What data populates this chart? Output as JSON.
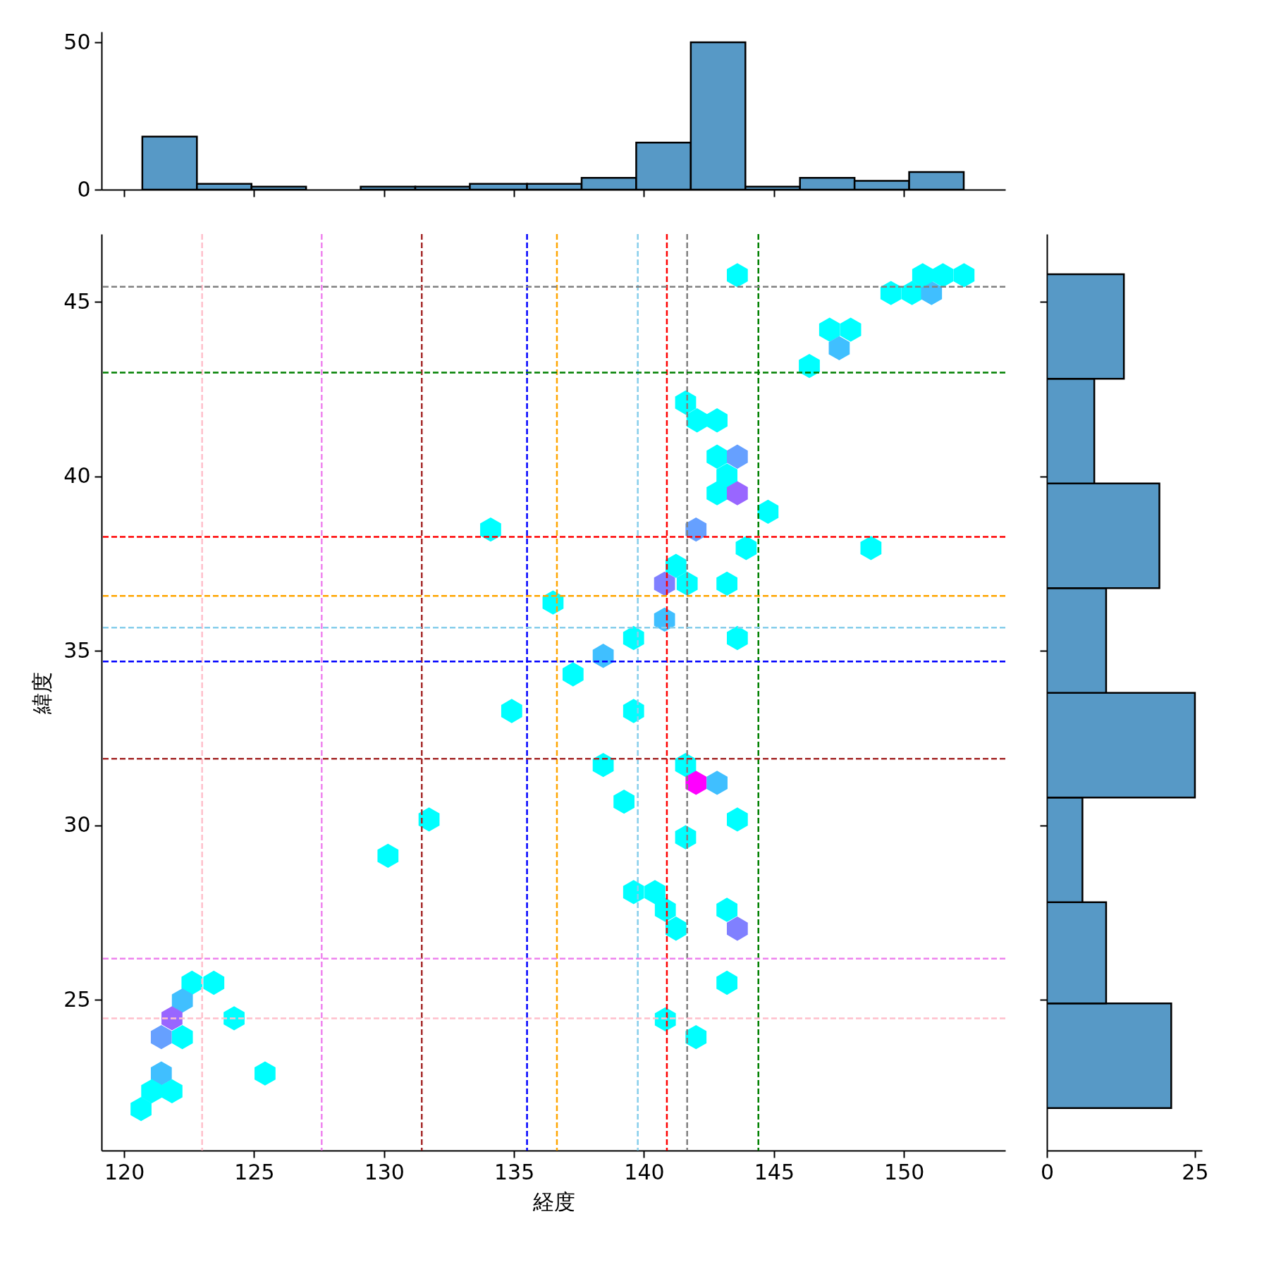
{
  "chart_data": [
    {
      "type": "histogram",
      "bins": [
        120.7,
        122.8,
        124.9,
        127.0,
        129.1,
        131.2,
        133.3,
        135.5,
        137.6,
        139.7,
        141.8,
        143.9,
        146.0,
        148.1,
        150.2,
        152.3
      ],
      "values": [
        18,
        2,
        1,
        0,
        1,
        1,
        2,
        2,
        4,
        16,
        50,
        1,
        4,
        3,
        6
      ],
      "color": "#5799c6",
      "xlim": [
        119.13,
        153.9
      ],
      "xticks": [
        120,
        125,
        130,
        135,
        140,
        145,
        150
      ],
      "ylim": [
        0,
        53.6
      ],
      "yticks": [
        0,
        50
      ],
      "tick_labels": "y"
    },
    {
      "type": "scatter",
      "xlabel": "経度",
      "ylabel": "緯度",
      "xlim": [
        119.13,
        153.9
      ],
      "xticks": [
        120,
        125,
        130,
        135,
        140,
        145,
        150
      ],
      "ylim": [
        20.68,
        46.95
      ],
      "yticks": [
        25,
        30,
        35,
        40,
        45
      ],
      "x": [
        143.59,
        149.5,
        150.31,
        151.06,
        150.72,
        151.5,
        152.31,
        147.14,
        147.95,
        147.51,
        146.36,
        141.6,
        142.04,
        142.81,
        142.81,
        143.59,
        143.19,
        142.81,
        143.59,
        144.77,
        142.0,
        134.1,
        143.93,
        148.73,
        141.23,
        140.79,
        141.66,
        143.19,
        136.5,
        140.79,
        139.6,
        143.59,
        138.43,
        137.27,
        134.91,
        139.6,
        138.43,
        141.6,
        142.0,
        142.81,
        139.23,
        143.59,
        131.73,
        130.15,
        141.6,
        139.6,
        140.42,
        140.82,
        141.23,
        143.19,
        143.59,
        143.19,
        140.82,
        142.0,
        122.61,
        123.45,
        122.24,
        121.84,
        121.43,
        122.24,
        124.23,
        121.43,
        121.06,
        121.84,
        120.65,
        125.42
      ],
      "values": [
        45.77,
        45.26,
        45.26,
        45.26,
        45.77,
        45.77,
        45.77,
        44.21,
        44.21,
        43.68,
        43.17,
        42.12,
        41.61,
        41.61,
        40.57,
        40.57,
        40.03,
        39.52,
        39.52,
        38.99,
        38.48,
        38.48,
        37.95,
        37.95,
        37.44,
        36.93,
        36.93,
        36.93,
        36.39,
        35.9,
        35.37,
        35.37,
        34.86,
        34.33,
        33.28,
        33.28,
        31.73,
        31.73,
        31.22,
        31.22,
        30.68,
        30.17,
        30.17,
        29.13,
        29.66,
        28.09,
        28.09,
        27.58,
        27.04,
        27.58,
        27.04,
        25.49,
        24.44,
        23.93,
        25.49,
        25.49,
        24.98,
        24.47,
        23.93,
        23.93,
        24.47,
        22.89,
        22.38,
        22.38,
        21.87,
        22.89
      ],
      "colors": [
        "#00ffff",
        "#00ffff",
        "#00ffff",
        "#40bfff",
        "#00ffff",
        "#00ffff",
        "#00ffff",
        "#00ffff",
        "#00ffff",
        "#40bfff",
        "#00ffff",
        "#00ffff",
        "#00ffff",
        "#00ffff",
        "#00ffff",
        "#66a0ff",
        "#00ffff",
        "#00ffff",
        "#9966ff",
        "#00ffff",
        "#66a0ff",
        "#00ffff",
        "#00ffff",
        "#00ffff",
        "#00ffff",
        "#8080ff",
        "#00ffff",
        "#00ffff",
        "#00ffff",
        "#40bfff",
        "#00ffff",
        "#00ffff",
        "#40bfff",
        "#00ffff",
        "#00ffff",
        "#00ffff",
        "#00ffff",
        "#00ffff",
        "#ff00ff",
        "#40bfff",
        "#00ffff",
        "#00ffff",
        "#00ffff",
        "#00ffff",
        "#00ffff",
        "#00ffff",
        "#00ffff",
        "#00ffff",
        "#00ffff",
        "#00ffff",
        "#8080ff",
        "#00ffff",
        "#00ffff",
        "#00ffff",
        "#00ffff",
        "#00ffff",
        "#40bfff",
        "#9966ff",
        "#66a0ff",
        "#00ffff",
        "#00ffff",
        "#40bfff",
        "#00ffff",
        "#00ffff",
        "#00ffff",
        "#00ffff"
      ],
      "ref_lines": [
        {
          "axis": "x",
          "value": 123.0,
          "color": "#ffc0cb",
          "line_style": "dashed"
        },
        {
          "axis": "x",
          "value": 127.6,
          "color": "#ee82ee",
          "line_style": "dashed"
        },
        {
          "axis": "x",
          "value": 131.45,
          "color": "#a52a2a",
          "line_style": "dashed"
        },
        {
          "axis": "x",
          "value": 135.5,
          "color": "#0000ff",
          "line_style": "dashed"
        },
        {
          "axis": "x",
          "value": 136.65,
          "color": "#ffa500",
          "line_style": "dashed"
        },
        {
          "axis": "x",
          "value": 139.76,
          "color": "#87ceeb",
          "line_style": "dashed"
        },
        {
          "axis": "x",
          "value": 140.88,
          "color": "#ff0000",
          "line_style": "dashed"
        },
        {
          "axis": "x",
          "value": 141.66,
          "color": "#808080",
          "line_style": "dashed"
        },
        {
          "axis": "x",
          "value": 144.4,
          "color": "#008000",
          "line_style": "dashed"
        },
        {
          "axis": "y",
          "value": 45.44,
          "color": "#808080",
          "line_style": "dashed"
        },
        {
          "axis": "y",
          "value": 42.98,
          "color": "#008000",
          "line_style": "dashed"
        },
        {
          "axis": "y",
          "value": 38.27,
          "color": "#ff0000",
          "line_style": "dashed"
        },
        {
          "axis": "y",
          "value": 36.58,
          "color": "#ffa500",
          "line_style": "dashed"
        },
        {
          "axis": "y",
          "value": 35.67,
          "color": "#87ceeb",
          "line_style": "dashed"
        },
        {
          "axis": "y",
          "value": 34.7,
          "color": "#0000ff",
          "line_style": "dashed"
        },
        {
          "axis": "y",
          "value": 31.91,
          "color": "#a52a2a",
          "line_style": "dashed"
        },
        {
          "axis": "y",
          "value": 26.18,
          "color": "#ee82ee",
          "line_style": "dashed"
        },
        {
          "axis": "y",
          "value": 24.47,
          "color": "#ffc0cb",
          "line_style": "dashed"
        }
      ]
    },
    {
      "type": "histogram",
      "orientation": "horizontal",
      "bins": [
        21.9,
        24.9,
        27.8,
        30.8,
        33.8,
        36.8,
        39.8,
        42.8,
        45.8
      ],
      "values": [
        21,
        10,
        6,
        25,
        10,
        19,
        8,
        13
      ],
      "color": "#5799c6",
      "xlim": [
        0,
        26.2
      ],
      "xticks": [
        0,
        25
      ],
      "ylim": [
        20.68,
        46.95
      ],
      "yticks": [
        25,
        30,
        35,
        40,
        45
      ],
      "tick_labels": "x"
    }
  ]
}
